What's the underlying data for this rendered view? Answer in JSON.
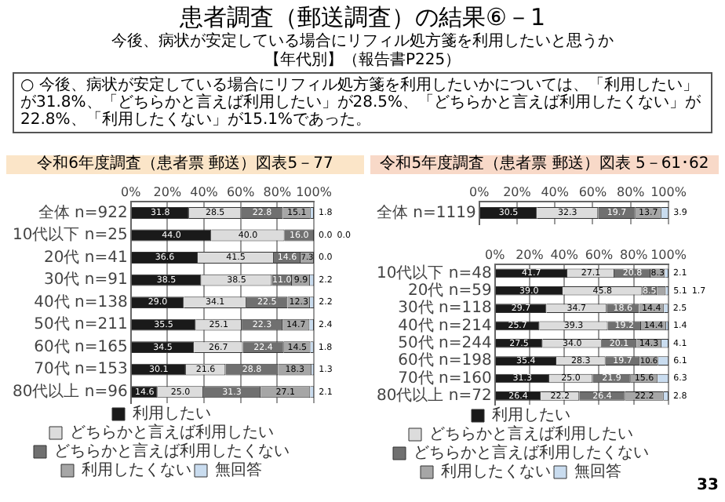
{
  "chart_data": [
    {
      "type": "bar",
      "orientation": "horizontal",
      "stacked": true,
      "title": "患者調査（郵送調査）の結果⑥－1",
      "subtitle": "今後、病状が安定している場合にリフィル処方箋を利用したいと思うか",
      "annotations": [
        "【年代別】（報告書P225）",
        "○ 今後、病状が安定している場合にリフィル処方箋を利用したいかについては、「利用したい」が31.8%、「どちらかと言えば利用したい」が28.5%、「どちらかと言えば利用したくない」が22.8%、「利用したくない」が15.1%であった。",
        "令和6年度調査（患者票 郵送）図表5－77"
      ],
      "categories": [
        "全体 n=922",
        "10代以下 n=25",
        "20代 n=41",
        "30代 n=91",
        "40代 n=138",
        "50代 n=211",
        "60代 n=165",
        "70代 n=153",
        "80代以上 n=96"
      ],
      "series": [
        {
          "name": "利用したい",
          "color": "#1a1a1a",
          "values": [
            31.8,
            44.0,
            36.6,
            38.5,
            29.0,
            35.5,
            34.5,
            30.1,
            14.6
          ],
          "value_labels": [
            "31.8",
            "44.0",
            "36.6",
            "38.5",
            "29.0",
            "35.5",
            "34.5",
            "30.1",
            "14.6"
          ]
        },
        {
          "name": "どちらかと言えば利用したい",
          "color": "#dcdcdc",
          "values": [
            28.5,
            40.0,
            41.5,
            38.5,
            34.1,
            25.1,
            26.7,
            21.6,
            25.0
          ],
          "value_labels": [
            "28.5",
            "40.0",
            "41.5",
            "38.5",
            "34.1",
            "25.1",
            "26.7",
            "21.6",
            "25.0"
          ]
        },
        {
          "name": "どちらかと言えば利用したくない",
          "color": "#707070",
          "values": [
            22.8,
            16.0,
            14.6,
            11.0,
            22.5,
            22.3,
            22.4,
            28.8,
            31.3
          ],
          "value_labels": [
            "22.8",
            "16.0",
            "14.6",
            "11.0",
            "22.5",
            "22.3",
            "22.4",
            "28.8",
            "31.3"
          ]
        },
        {
          "name": "利用したくない",
          "color": "#a6a6a6",
          "values": [
            15.1,
            0.0,
            7.3,
            9.9,
            12.3,
            14.7,
            14.5,
            18.3,
            27.1
          ],
          "value_labels": [
            "15.1",
            "0.0",
            "7.3",
            "9.9",
            "12.3",
            "14.7",
            "14.5",
            "18.3",
            "27.1"
          ]
        },
        {
          "name": "無回答",
          "color": "#c9dcef",
          "values": [
            1.8,
            0.0,
            0.0,
            2.2,
            2.2,
            2.4,
            1.8,
            1.3,
            2.1
          ],
          "value_labels": [
            "1.8",
            "0.0",
            "0.0",
            "2.2",
            "2.2",
            "2.4",
            "1.8",
            "1.3",
            "2.1"
          ]
        }
      ],
      "xlim": [
        0,
        100
      ],
      "xticks": [
        {
          "value": 0,
          "label": "0%"
        },
        {
          "value": 20,
          "label": "20%"
        },
        {
          "value": 40,
          "label": "40%"
        },
        {
          "value": 60,
          "label": "60%"
        },
        {
          "value": 80,
          "label": "80%"
        },
        {
          "value": 100,
          "label": "100%"
        }
      ],
      "grid": "x",
      "legend": "bottom"
    },
    {
      "type": "bar",
      "orientation": "horizontal",
      "stacked": true,
      "title": "令和5年度調査（患者票 郵送）図表 5－61･62",
      "categories": [
        "全体 n=1119"
      ],
      "series": [
        {
          "color": "#1a1a1a",
          "values": [
            30.5
          ],
          "value_labels": [
            "30.5"
          ]
        },
        {
          "color": "#dcdcdc",
          "values": [
            32.3
          ],
          "value_labels": [
            "32.3"
          ]
        },
        {
          "color": "#707070",
          "values": [
            19.7
          ],
          "value_labels": [
            "19.7"
          ]
        },
        {
          "color": "#a6a6a6",
          "values": [
            13.7
          ],
          "value_labels": [
            "13.7"
          ]
        },
        {
          "color": "#c9dcef",
          "values": [
            3.9
          ],
          "value_labels": [
            "3.9"
          ]
        }
      ],
      "xlim": [
        0,
        100
      ],
      "xticks": [
        {
          "value": 0,
          "label": "0%"
        },
        {
          "value": 20,
          "label": "20%"
        },
        {
          "value": 40,
          "label": "40%"
        },
        {
          "value": 60,
          "label": "60%"
        },
        {
          "value": 80,
          "label": "80%"
        },
        {
          "value": 100,
          "label": "100%"
        }
      ],
      "grid": "x"
    },
    {
      "type": "bar",
      "orientation": "horizontal",
      "stacked": true,
      "annotations": [
        "33"
      ],
      "categories": [
        "10代以下 n=48",
        "20代 n=59",
        "30代 n=118",
        "40代 n=214",
        "50代 n=244",
        "60代 n=198",
        "70代 n=160",
        "80代以上 n=72"
      ],
      "series": [
        {
          "name": "利用したい",
          "color": "#1a1a1a",
          "values": [
            41.7,
            39.0,
            29.7,
            25.7,
            27.5,
            35.4,
            31.3,
            26.4
          ],
          "value_labels": [
            "41.7",
            "39.0",
            "29.7",
            "25.7",
            "27.5",
            "35.4",
            "31.3",
            "26.4"
          ]
        },
        {
          "name": "どちらかと言えば利用したい",
          "color": "#dcdcdc",
          "values": [
            27.1,
            45.8,
            34.7,
            39.3,
            34.0,
            28.3,
            25.0,
            22.2
          ],
          "value_labels": [
            "27.1",
            "45.8",
            "34.7",
            "39.3",
            "34.0",
            "28.3",
            "25.0",
            "22.2"
          ]
        },
        {
          "name": "どちらかと言えば利用したくない",
          "color": "#707070",
          "values": [
            20.8,
            8.5,
            18.6,
            19.2,
            20.1,
            19.7,
            21.9,
            26.4
          ],
          "value_labels": [
            "20.8",
            "8.5",
            "18.6",
            "19.2",
            "20.1",
            "19.7",
            "21.9",
            "26.4"
          ]
        },
        {
          "name": "利用したくない",
          "color": "#a6a6a6",
          "values": [
            8.3,
            5.1,
            14.4,
            14.4,
            14.3,
            10.6,
            15.6,
            22.2
          ],
          "value_labels": [
            "8.3",
            "5.1",
            "14.4",
            "14.4",
            "14.3",
            "10.6",
            "15.6",
            "22.2"
          ]
        },
        {
          "name": "無回答",
          "color": "#c9dcef",
          "values": [
            2.1,
            1.7,
            2.5,
            1.4,
            4.1,
            6.1,
            6.3,
            2.8
          ],
          "value_labels": [
            "2.1",
            "1.7",
            "2.5",
            "1.4",
            "4.1",
            "6.1",
            "6.3",
            "2.8"
          ]
        }
      ],
      "xlim": [
        0,
        100
      ],
      "xticks": [
        {
          "value": 0,
          "label": "0%"
        },
        {
          "value": 20,
          "label": "20%"
        },
        {
          "value": 40,
          "label": "40%"
        },
        {
          "value": 60,
          "label": "60%"
        },
        {
          "value": 80,
          "label": "80%"
        },
        {
          "value": 100,
          "label": "100%"
        }
      ],
      "grid": "x",
      "legend": "bottom"
    }
  ]
}
